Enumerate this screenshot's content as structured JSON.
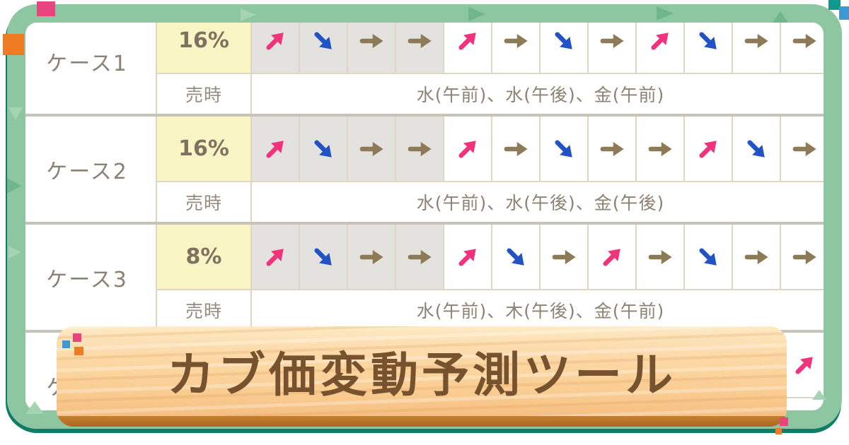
{
  "title": "カブ価変動予測ツール",
  "table": {
    "sell_label": "売時",
    "rows": [
      {
        "label": "ケース1",
        "percent": "16%",
        "past_count": 4,
        "arrows": [
          "up",
          "down",
          "right",
          "right",
          "up",
          "right",
          "down",
          "right",
          "up",
          "down",
          "right",
          "right"
        ],
        "sell_time": "水(午前)、水(午後)、金(午前)"
      },
      {
        "label": "ケース2",
        "percent": "16%",
        "past_count": 4,
        "arrows": [
          "up",
          "down",
          "right",
          "right",
          "up",
          "right",
          "down",
          "right",
          "right",
          "up",
          "down",
          "right"
        ],
        "sell_time": "水(午前)、水(午後)、金(午後)"
      },
      {
        "label": "ケース3",
        "percent": "8%",
        "past_count": 4,
        "arrows": [
          "up",
          "down",
          "right",
          "right",
          "up",
          "down",
          "right",
          "up",
          "right",
          "down",
          "right",
          "right"
        ],
        "sell_time": "水(午前)、木(午後)、金(午前)"
      },
      {
        "label": "ケース4",
        "percent": "",
        "past_count": 0,
        "arrows": [
          "",
          "",
          "",
          "",
          "",
          "",
          "",
          "",
          "",
          "",
          "",
          "up"
        ],
        "sell_time": ""
      }
    ]
  },
  "colors": {
    "arrow_up": "#f1337e",
    "arrow_down": "#2253c4",
    "arrow_flat": "#8d7b57",
    "frame": "#8cc7a1",
    "frame_shadow": "#0e7d66",
    "percent_bg": "#faf5c5",
    "past_cell_bg": "#e3e2de",
    "sign_wood": "#fbd49e",
    "sign_text": "#77522e"
  }
}
